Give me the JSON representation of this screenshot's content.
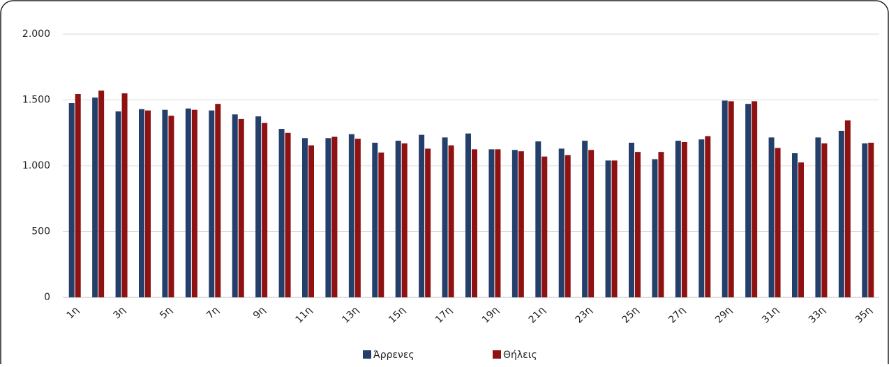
{
  "chart_data": {
    "type": "bar",
    "categories": [
      "1η",
      null,
      "3η",
      null,
      "5η",
      null,
      "7η",
      null,
      "9η",
      null,
      "11η",
      null,
      "13η",
      null,
      "15η",
      null,
      "17η",
      null,
      "19η",
      null,
      "21η",
      null,
      "23η",
      null,
      "25η",
      null,
      "27η",
      null,
      "29η",
      null,
      "31η",
      null,
      "33η",
      null,
      "35η"
    ],
    "series": [
      {
        "name": "Άρρενες",
        "color": "#253f6b",
        "values": [
          1476,
          1518,
          1413,
          1430,
          1425,
          1435,
          1420,
          1390,
          1375,
          1280,
          1210,
          1210,
          1240,
          1175,
          1190,
          1235,
          1215,
          1245,
          1125,
          1120,
          1185,
          1130,
          1190,
          1040,
          1175,
          1050,
          1190,
          1200,
          1495,
          1470,
          1215,
          1095,
          1215,
          1265,
          1170
        ]
      },
      {
        "name": "Θήλεις",
        "color": "#8e1212",
        "values": [
          1545,
          1571,
          1550,
          1420,
          1380,
          1425,
          1470,
          1355,
          1325,
          1250,
          1155,
          1220,
          1205,
          1100,
          1170,
          1130,
          1155,
          1125,
          1125,
          1110,
          1070,
          1080,
          1120,
          1040,
          1105,
          1105,
          1180,
          1225,
          1490,
          1490,
          1135,
          1025,
          1170,
          1345,
          1175
        ]
      }
    ],
    "ylim": [
      0,
      2000
    ],
    "yticks": [
      0,
      500,
      {
        "value": 1000,
        "label": "1.000"
      },
      {
        "value": 1500,
        "label": "1.500"
      },
      {
        "value": 2000,
        "label": "2.000"
      }
    ],
    "grid": true
  }
}
